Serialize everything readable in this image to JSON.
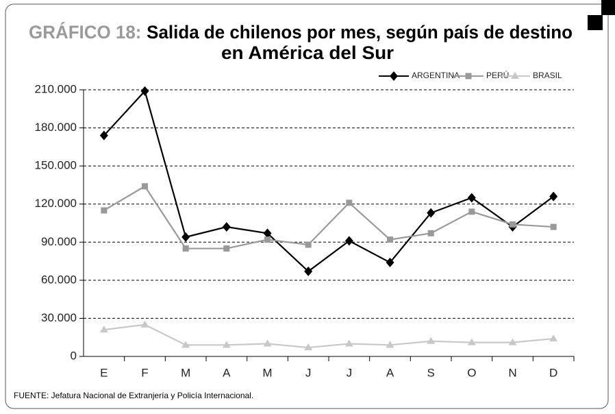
{
  "chart_data": {
    "type": "line",
    "title_prefix": "GRÁFICO 18:",
    "title_lines": [
      "Salida de chilenos por mes, según país de destino",
      "en América del Sur"
    ],
    "source": "FUENTE: Jefatura Nacional de Extranjería y Policía Internacional.",
    "categories": [
      "E",
      "F",
      "M",
      "A",
      "M",
      "J",
      "J",
      "A",
      "S",
      "O",
      "N",
      "D"
    ],
    "series": [
      {
        "name": "ARGENTINA",
        "color": "#000000",
        "marker": "diamond",
        "values": [
          174000,
          209000,
          94000,
          102000,
          97000,
          67000,
          91000,
          74000,
          113000,
          125000,
          102000,
          126000
        ]
      },
      {
        "name": "PERÚ",
        "color": "#999999",
        "marker": "square",
        "values": [
          115000,
          134000,
          85000,
          85000,
          92000,
          88000,
          121000,
          92000,
          97000,
          114000,
          104000,
          102000
        ]
      },
      {
        "name": "BRASIL",
        "color": "#c8c8c8",
        "marker": "triangle",
        "values": [
          21000,
          25000,
          9000,
          9000,
          10000,
          7000,
          10000,
          9000,
          12000,
          11000,
          11000,
          14000
        ]
      }
    ],
    "ylim": [
      0,
      210000
    ],
    "yticks": [
      0,
      {
        "value": 30000,
        "label": "30.000"
      },
      {
        "value": 60000,
        "label": "60.000"
      },
      {
        "value": 90000,
        "label": "90.000"
      },
      {
        "value": 120000,
        "label": "120.000"
      },
      {
        "value": 150000,
        "label": "150.000"
      },
      {
        "value": 180000,
        "label": "180.000"
      },
      {
        "value": 210000,
        "label": "210.000"
      }
    ],
    "grid": true,
    "legend": "top-right"
  }
}
